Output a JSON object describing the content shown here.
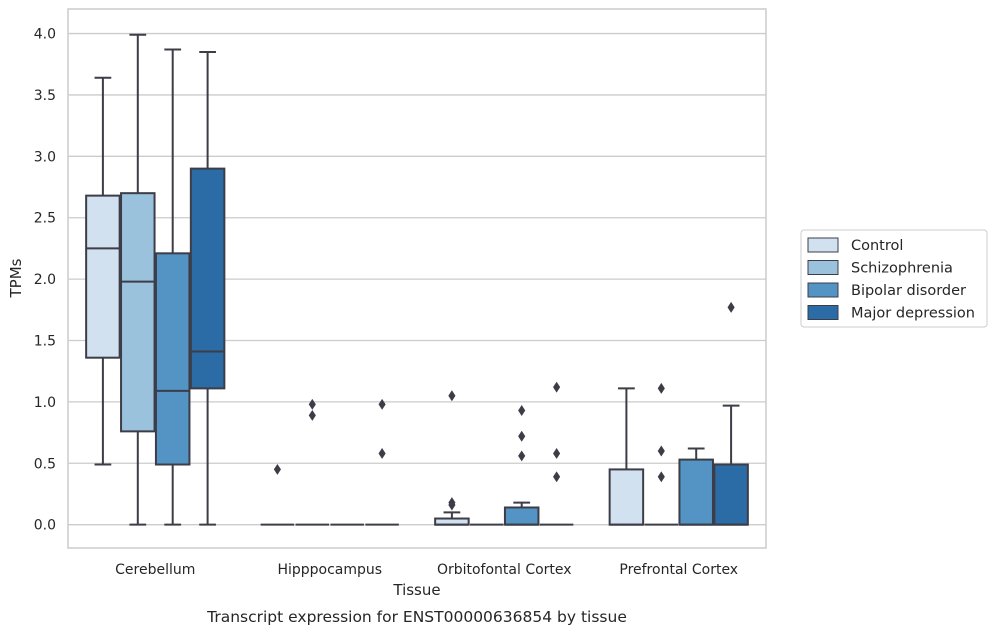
{
  "chart_data": {
    "type": "box",
    "title": "",
    "caption": "Transcript expression for ENST00000636854 by tissue",
    "xlabel": "Tissue",
    "ylabel": "TPMs",
    "ylim": [
      -0.19,
      4.2
    ],
    "yticks": [
      "0.0",
      "0.5",
      "1.0",
      "1.5",
      "2.0",
      "2.5",
      "3.0",
      "3.5",
      "4.0"
    ],
    "grid": "horizontal",
    "legend_position": "right-outside",
    "categories": [
      "Cerebellum",
      "Hipppocampus",
      "Orbitofontal Cortex",
      "Prefrontal Cortex"
    ],
    "series": [
      {
        "name": "Control",
        "color": "#d1e1f0",
        "boxes": [
          {
            "whislo": 0.49,
            "q1": 1.36,
            "med": 2.25,
            "q3": 2.68,
            "whishi": 3.64,
            "fliers": []
          },
          {
            "whislo": 0.0,
            "q1": 0.0,
            "med": 0.0,
            "q3": 0.0,
            "whishi": 0.0,
            "fliers": [
              0.45
            ]
          },
          {
            "whislo": 0.0,
            "q1": 0.0,
            "med": 0.0,
            "q3": 0.05,
            "whishi": 0.1,
            "fliers": [
              0.16,
              0.18,
              1.05
            ]
          },
          {
            "whislo": 0.0,
            "q1": 0.0,
            "med": 0.0,
            "q3": 0.45,
            "whishi": 1.11,
            "fliers": []
          }
        ]
      },
      {
        "name": "Schizophrenia",
        "color": "#9ac2dc",
        "boxes": [
          {
            "whislo": 0.0,
            "q1": 0.76,
            "med": 1.98,
            "q3": 2.7,
            "whishi": 3.99,
            "fliers": []
          },
          {
            "whislo": 0.0,
            "q1": 0.0,
            "med": 0.0,
            "q3": 0.0,
            "whishi": 0.0,
            "fliers": [
              0.89,
              0.98
            ]
          },
          {
            "whislo": 0.0,
            "q1": 0.0,
            "med": 0.0,
            "q3": 0.0,
            "whishi": 0.0,
            "fliers": []
          },
          {
            "whislo": 0.0,
            "q1": 0.0,
            "med": 0.0,
            "q3": 0.0,
            "whishi": 0.0,
            "fliers": [
              0.39,
              0.6,
              1.11
            ]
          }
        ]
      },
      {
        "name": "Bipolar disorder",
        "color": "#5394c5",
        "boxes": [
          {
            "whislo": 0.0,
            "q1": 0.49,
            "med": 1.09,
            "q3": 2.21,
            "whishi": 3.87,
            "fliers": []
          },
          {
            "whislo": 0.0,
            "q1": 0.0,
            "med": 0.0,
            "q3": 0.0,
            "whishi": 0.0,
            "fliers": []
          },
          {
            "whislo": 0.0,
            "q1": 0.0,
            "med": 0.0,
            "q3": 0.14,
            "whishi": 0.18,
            "fliers": [
              0.56,
              0.72,
              0.93
            ]
          },
          {
            "whislo": 0.0,
            "q1": 0.0,
            "med": 0.0,
            "q3": 0.53,
            "whishi": 0.62,
            "fliers": []
          }
        ]
      },
      {
        "name": "Major depression",
        "color": "#2b6ba6",
        "boxes": [
          {
            "whislo": 0.0,
            "q1": 1.11,
            "med": 1.41,
            "q3": 2.9,
            "whishi": 3.85,
            "fliers": []
          },
          {
            "whislo": 0.0,
            "q1": 0.0,
            "med": 0.0,
            "q3": 0.0,
            "whishi": 0.0,
            "fliers": [
              0.58,
              0.98
            ]
          },
          {
            "whislo": 0.0,
            "q1": 0.0,
            "med": 0.0,
            "q3": 0.0,
            "whishi": 0.0,
            "fliers": [
              0.39,
              0.58,
              1.12
            ]
          },
          {
            "whislo": 0.0,
            "q1": 0.0,
            "med": 0.0,
            "q3": 0.49,
            "whishi": 0.97,
            "fliers": [
              1.77
            ]
          }
        ]
      }
    ]
  }
}
